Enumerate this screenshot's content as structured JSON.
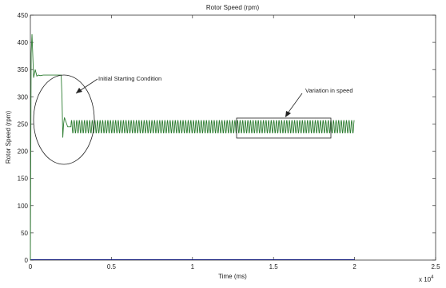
{
  "chart_data": {
    "type": "line",
    "title": "Rotor Speed (rpm)",
    "xlabel": "Time (ms)",
    "ylabel": "Rotor Speed (rpm)",
    "x_multiplier": "x 10",
    "x_multiplier_exp": "4",
    "xlim": [
      0,
      2.5
    ],
    "ylim": [
      0,
      450
    ],
    "xticks": [
      "0",
      "0.5",
      "1",
      "1.5",
      "2",
      "2.5"
    ],
    "yticks": [
      "0",
      "50",
      "100",
      "150",
      "200",
      "250",
      "300",
      "350",
      "400",
      "450"
    ],
    "grid": false,
    "series": [
      {
        "color": "#2e7d32",
        "description_points": {
          "x": [
            0,
            0.005,
            0.01,
            0.02,
            0.03,
            0.04,
            0.05,
            0.06,
            0.08,
            0.1,
            0.15,
            0.19,
            0.195,
            0.2,
            0.205,
            0.21,
            0.23,
            0.25,
            2.0
          ],
          "y": [
            0,
            380,
            415,
            335,
            350,
            338,
            340,
            339,
            340,
            340,
            340,
            340,
            300,
            225,
            250,
            262,
            245,
            255,
            248
          ]
        },
        "steady_state_mean": 245,
        "oscillation_amplitude": 12,
        "oscillation_period": 0.016
      },
      {
        "color": "#1a237e",
        "description_points": {
          "x": [
            0,
            2.0
          ],
          "y": [
            0,
            0
          ]
        }
      }
    ],
    "annotations": [
      {
        "text": "Initial Starting Condition",
        "shape": "ellipse"
      },
      {
        "text": "Variation in speed",
        "shape": "rectangle"
      }
    ]
  }
}
